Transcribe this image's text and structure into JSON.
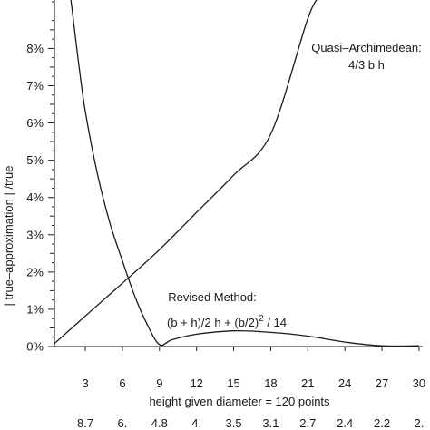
{
  "chart_data": {
    "type": "line",
    "title": "",
    "ylabel": "| true–approximation | /true",
    "xlabel": "height given diameter = 120 points",
    "xlim": [
      0.5,
      30.3
    ],
    "ylim": [
      0,
      9.3
    ],
    "y_ticks": [
      0,
      1,
      2,
      3,
      4,
      5,
      6,
      7,
      8
    ],
    "y_tick_labels": [
      "0%",
      "1%",
      "2%",
      "3%",
      "4%",
      "5%",
      "6%",
      "7%",
      "8%"
    ],
    "x_ticks": [
      3,
      6,
      9,
      12,
      15,
      18,
      21,
      24,
      27,
      30
    ],
    "x_tick_labels": [
      "3",
      "6",
      "9",
      "12",
      "15",
      "18",
      "21",
      "24",
      "27",
      "30"
    ],
    "secondary_x_tick_labels": [
      "8.7",
      "6.",
      "4.8",
      "4.",
      "3.5",
      "3.1",
      "2.7",
      "2.4",
      "2.2",
      "2."
    ],
    "grid": false,
    "series": [
      {
        "name": "Quasi–Archimedean: 4/3 b h",
        "x": [
          0.5,
          3,
          6,
          9,
          12,
          15,
          18,
          21,
          22
        ],
        "y": [
          0.08,
          0.82,
          1.7,
          2.6,
          3.6,
          4.6,
          5.7,
          8.8,
          9.4
        ]
      },
      {
        "name": "Revised Method: (b + h)/2 h + (b/2)2 / 14",
        "x": [
          1.8,
          2.5,
          3,
          4,
          5,
          6,
          7,
          8,
          9,
          10,
          12,
          15,
          18,
          21,
          24,
          27,
          30
        ],
        "y": [
          9.4,
          7.5,
          6.3,
          4.6,
          3.3,
          2.3,
          1.35,
          0.6,
          0.05,
          0.18,
          0.33,
          0.42,
          0.38,
          0.28,
          0.12,
          0.02,
          0.02
        ]
      }
    ],
    "annotations": [
      {
        "line1": "Quasi–Archimedean:",
        "line2": "4/3 b h"
      },
      {
        "line1": "Revised Method:",
        "line2_a": "(b + h)/2 h + (b/2)",
        "line2_sup": "2",
        "line2_b": " / 14"
      }
    ]
  }
}
